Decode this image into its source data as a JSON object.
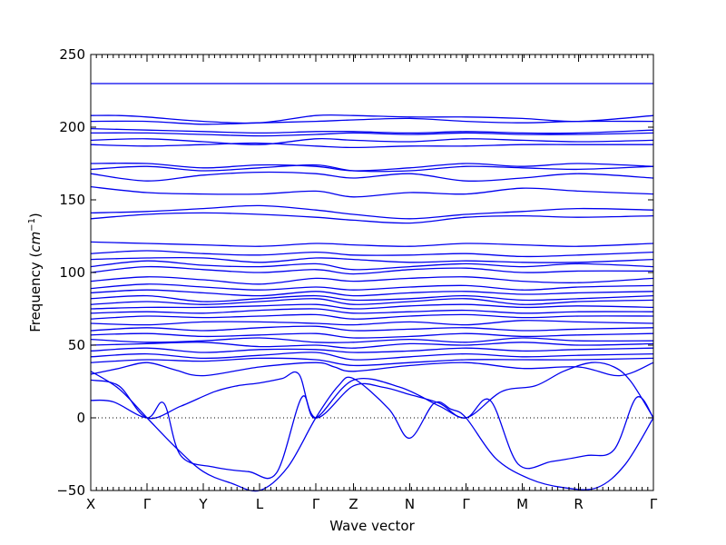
{
  "chart_data": {
    "type": "line",
    "title": "",
    "xlabel": "Wave vector",
    "ylabel_main": "Frequency (",
    "ylabel_unit": "cm",
    "ylabel_exp": "−1",
    "ylabel_close": ")",
    "ylim": [
      -50,
      250
    ],
    "xlim": [
      0,
      10
    ],
    "y_ticks": [
      -50,
      0,
      50,
      100,
      150,
      200,
      250
    ],
    "x_ticks": [
      {
        "label": "X",
        "x": 0
      },
      {
        "label": "Γ",
        "x": 1
      },
      {
        "label": "Y",
        "x": 2
      },
      {
        "label": "L",
        "x": 3
      },
      {
        "label": "Γ",
        "x": 4
      },
      {
        "label": "Z",
        "x": 4.67
      },
      {
        "label": "N",
        "x": 5.67
      },
      {
        "label": "Γ",
        "x": 6.67
      },
      {
        "label": "M",
        "x": 7.67
      },
      {
        "label": "R",
        "x": 8.67
      },
      {
        "label": "Γ",
        "x": 10
      }
    ],
    "zero_line": true,
    "line_color": "#0000ee",
    "series": [
      {
        "x": [
          0,
          1,
          2,
          3,
          4,
          4.67,
          5.67,
          6.67,
          7.67,
          8.67,
          10
        ],
        "y": [
          230,
          230,
          230,
          230,
          230,
          230,
          230,
          230,
          230,
          230,
          230
        ]
      },
      {
        "x": [
          0,
          0.5,
          1,
          2,
          3,
          4,
          4.67,
          5.67,
          6.67,
          7.67,
          8.67,
          10
        ],
        "y": [
          208,
          208,
          207,
          204,
          203,
          208,
          208,
          207,
          207,
          206,
          204,
          208
        ]
      },
      {
        "x": [
          0,
          1,
          2,
          3,
          4,
          4.67,
          5.67,
          6.67,
          7.67,
          8.67,
          10
        ],
        "y": [
          204,
          204,
          202,
          203,
          204,
          205,
          206,
          204,
          203,
          204,
          204
        ]
      },
      {
        "x": [
          0,
          1,
          2,
          3,
          4,
          4.67,
          5.67,
          6.67,
          7.67,
          8.67,
          10
        ],
        "y": [
          199,
          198,
          197,
          196,
          197,
          197,
          196,
          197,
          196,
          196,
          198
        ]
      },
      {
        "x": [
          0,
          1,
          2,
          3,
          4,
          4.67,
          5.67,
          6.67,
          7.67,
          8.67,
          10
        ],
        "y": [
          196,
          196,
          195,
          194,
          195,
          196,
          195,
          196,
          195,
          195,
          196
        ]
      },
      {
        "x": [
          0,
          1,
          2,
          3,
          4,
          4.67,
          5.67,
          6.67,
          7.67,
          8.67,
          10
        ],
        "y": [
          191,
          192,
          190,
          188,
          192,
          191,
          190,
          192,
          191,
          190,
          191
        ]
      },
      {
        "x": [
          0,
          1,
          2,
          3,
          4,
          4.67,
          5.67,
          6.67,
          7.67,
          8.67,
          10
        ],
        "y": [
          188,
          187,
          188,
          189,
          187,
          186,
          187,
          187,
          188,
          188,
          188
        ]
      },
      {
        "x": [
          0,
          1,
          2,
          3,
          4,
          4.67,
          5.67,
          6.67,
          7.67,
          8.67,
          10
        ],
        "y": [
          175,
          175,
          172,
          174,
          173,
          170,
          172,
          175,
          173,
          175,
          173
        ]
      },
      {
        "x": [
          0,
          1,
          2,
          3,
          4,
          4.67,
          5.67,
          6.67,
          7.67,
          8.67,
          10
        ],
        "y": [
          171,
          173,
          170,
          172,
          174,
          170,
          170,
          173,
          172,
          171,
          173
        ]
      },
      {
        "x": [
          0,
          1,
          2,
          3,
          4,
          4.67,
          5.67,
          6.67,
          7.67,
          8.67,
          10
        ],
        "y": [
          168,
          163,
          167,
          169,
          168,
          165,
          168,
          163,
          165,
          168,
          165
        ]
      },
      {
        "x": [
          0,
          1,
          2,
          3,
          4,
          4.67,
          5.67,
          6.67,
          7.67,
          8.67,
          10
        ],
        "y": [
          159,
          155,
          154,
          154,
          156,
          152,
          155,
          154,
          158,
          156,
          154
        ]
      },
      {
        "x": [
          0,
          1,
          2,
          3,
          4,
          4.67,
          5.67,
          6.67,
          7.67,
          8.67,
          10
        ],
        "y": [
          141,
          142,
          144,
          146,
          143,
          140,
          137,
          140,
          142,
          144,
          143
        ]
      },
      {
        "x": [
          0,
          1,
          2,
          3,
          4,
          4.67,
          5.67,
          6.67,
          7.67,
          8.67,
          10
        ],
        "y": [
          137,
          140,
          141,
          140,
          138,
          136,
          134,
          138,
          139,
          138,
          139
        ]
      },
      {
        "x": [
          0,
          1,
          2,
          3,
          4,
          4.67,
          5.67,
          6.67,
          7.67,
          8.67,
          10
        ],
        "y": [
          121,
          120,
          119,
          118,
          120,
          119,
          118,
          120,
          119,
          118,
          120
        ]
      },
      {
        "x": [
          0,
          1,
          2,
          3,
          4,
          4.67,
          5.67,
          6.67,
          7.67,
          8.67,
          10
        ],
        "y": [
          113,
          115,
          113,
          112,
          114,
          112,
          112,
          113,
          111,
          112,
          114
        ]
      },
      {
        "x": [
          0,
          1,
          2,
          3,
          4,
          4.67,
          5.67,
          6.67,
          7.67,
          8.67,
          10
        ],
        "y": [
          109,
          110,
          110,
          107,
          110,
          109,
          107,
          108,
          107,
          107,
          109
        ]
      },
      {
        "x": [
          0,
          1,
          2,
          3,
          4,
          4.67,
          5.67,
          6.67,
          7.67,
          8.67,
          10
        ],
        "y": [
          104,
          108,
          105,
          104,
          106,
          102,
          104,
          106,
          104,
          106,
          104
        ]
      },
      {
        "x": [
          0,
          1,
          2,
          3,
          4,
          4.67,
          5.67,
          6.67,
          7.67,
          8.67,
          10
        ],
        "y": [
          100,
          104,
          102,
          100,
          102,
          99,
          102,
          103,
          100,
          101,
          101
        ]
      },
      {
        "x": [
          0,
          1,
          2,
          3,
          4,
          4.67,
          5.67,
          6.67,
          7.67,
          8.67,
          10
        ],
        "y": [
          94,
          97,
          95,
          92,
          96,
          94,
          96,
          97,
          94,
          93,
          96
        ]
      },
      {
        "x": [
          0,
          1,
          2,
          3,
          4,
          4.67,
          5.67,
          6.67,
          7.67,
          8.67,
          10
        ],
        "y": [
          89,
          92,
          90,
          88,
          90,
          88,
          90,
          91,
          88,
          90,
          91
        ]
      },
      {
        "x": [
          0,
          1,
          2,
          3,
          4,
          4.67,
          5.67,
          6.67,
          7.67,
          8.67,
          10
        ],
        "y": [
          86,
          88,
          86,
          84,
          87,
          84,
          86,
          87,
          85,
          86,
          87
        ]
      },
      {
        "x": [
          0,
          1,
          2,
          3,
          4,
          4.67,
          5.67,
          6.67,
          7.67,
          8.67,
          10
        ],
        "y": [
          82,
          84,
          80,
          82,
          84,
          81,
          82,
          84,
          81,
          82,
          84
        ]
      },
      {
        "x": [
          0,
          1,
          2,
          3,
          4,
          4.67,
          5.67,
          6.67,
          7.67,
          8.67,
          10
        ],
        "y": [
          78,
          80,
          78,
          80,
          82,
          78,
          80,
          82,
          78,
          80,
          81
        ]
      },
      {
        "x": [
          0,
          1,
          2,
          3,
          4,
          4.67,
          5.67,
          6.67,
          7.67,
          8.67,
          10
        ],
        "y": [
          75,
          76,
          76,
          77,
          78,
          75,
          77,
          78,
          76,
          77,
          76
        ]
      },
      {
        "x": [
          0,
          1,
          2,
          3,
          4,
          4.67,
          5.67,
          6.67,
          7.67,
          8.67,
          10
        ],
        "y": [
          72,
          73,
          72,
          74,
          75,
          72,
          73,
          74,
          72,
          73,
          73
        ]
      },
      {
        "x": [
          0,
          1,
          2,
          3,
          4,
          4.67,
          5.67,
          6.67,
          7.67,
          8.67,
          10
        ],
        "y": [
          68,
          70,
          69,
          70,
          71,
          68,
          70,
          71,
          69,
          70,
          70
        ]
      },
      {
        "x": [
          0,
          1,
          2,
          3,
          4,
          4.67,
          5.67,
          6.67,
          7.67,
          8.67,
          10
        ],
        "y": [
          65,
          64,
          66,
          66,
          65,
          64,
          66,
          64,
          67,
          66,
          65
        ]
      },
      {
        "x": [
          0,
          1,
          2,
          3,
          4,
          4.67,
          5.67,
          6.67,
          7.67,
          8.67,
          10
        ],
        "y": [
          60,
          62,
          60,
          62,
          63,
          60,
          61,
          62,
          60,
          61,
          62
        ]
      },
      {
        "x": [
          0,
          1,
          2,
          3,
          4,
          4.67,
          5.67,
          6.67,
          7.67,
          8.67,
          10
        ],
        "y": [
          57,
          58,
          56,
          57,
          58,
          55,
          56,
          58,
          56,
          57,
          58
        ]
      },
      {
        "x": [
          0,
          1,
          2,
          3,
          4,
          4.67,
          5.67,
          6.67,
          7.67,
          8.67,
          10
        ],
        "y": [
          54,
          52,
          53,
          55,
          52,
          52,
          54,
          52,
          55,
          53,
          53
        ]
      },
      {
        "x": [
          0,
          1,
          2,
          3,
          4,
          4.67,
          5.67,
          6.67,
          7.67,
          8.67,
          10
        ],
        "y": [
          50,
          51,
          52,
          49,
          50,
          48,
          51,
          50,
          52,
          50,
          51
        ]
      },
      {
        "x": [
          0,
          1,
          2,
          3,
          4,
          4.67,
          5.67,
          6.67,
          7.67,
          8.67,
          10
        ],
        "y": [
          46,
          48,
          45,
          47,
          47,
          45,
          46,
          48,
          46,
          47,
          48
        ]
      },
      {
        "x": [
          0,
          1,
          2,
          3,
          4,
          4.67,
          5.67,
          6.67,
          7.67,
          8.67,
          10
        ],
        "y": [
          42,
          44,
          41,
          43,
          45,
          40,
          42,
          44,
          42,
          43,
          44
        ]
      },
      {
        "x": [
          0,
          1,
          2,
          3,
          4,
          4.67,
          5.67,
          6.67,
          7.67,
          8.67,
          10
        ],
        "y": [
          38,
          40,
          39,
          41,
          40,
          36,
          38,
          40,
          40,
          40,
          41
        ]
      },
      {
        "x": [
          0,
          0.5,
          1,
          1.5,
          2,
          3,
          4,
          4.33,
          4.67,
          5.67,
          6.67,
          7.67,
          8.67,
          9.4,
          10
        ],
        "y": [
          30,
          34,
          38,
          33,
          29,
          35,
          38,
          35,
          32,
          36,
          38,
          34,
          35,
          29,
          38
        ]
      },
      {
        "x": [
          0,
          0.5,
          1,
          1.6,
          2.2,
          2.6,
          3,
          3.4,
          3.7,
          4,
          4.67,
          5.2,
          5.67,
          6.2,
          6.67,
          7.3,
          7.9,
          8.4,
          8.9,
          9.3,
          9.6,
          10
        ],
        "y": [
          26,
          22,
          0,
          8,
          18,
          22,
          24,
          27,
          30,
          0,
          22,
          21,
          16,
          10,
          0,
          18,
          22,
          32,
          38,
          35,
          25,
          0
        ]
      },
      {
        "x": [
          0,
          0.4,
          1,
          1.3,
          1.6,
          2.2,
          2.8,
          3.3,
          3.75,
          4,
          4.67,
          5.5,
          6.2,
          6.67,
          7.1,
          7.6,
          8.2,
          8.8,
          9.3,
          9.7,
          10
        ],
        "y": [
          12,
          11,
          0,
          10,
          -26,
          -34,
          -37,
          -38,
          14,
          0,
          26,
          21,
          8,
          0,
          12,
          -32,
          -30,
          -26,
          -22,
          14,
          0
        ]
      },
      {
        "x": [
          0,
          0.5,
          1,
          1.5,
          2,
          2.5,
          3,
          3.5,
          4,
          4.4,
          4.67,
          5.3,
          5.67,
          6.1,
          6.4,
          6.67,
          7.2,
          7.8,
          8.4,
          9,
          9.5,
          10
        ],
        "y": [
          32,
          20,
          0,
          -20,
          -37,
          -45,
          -50,
          -34,
          0,
          22,
          27,
          6,
          -14,
          10,
          6,
          0,
          -28,
          -42,
          -48,
          -48,
          -32,
          0
        ]
      }
    ]
  }
}
